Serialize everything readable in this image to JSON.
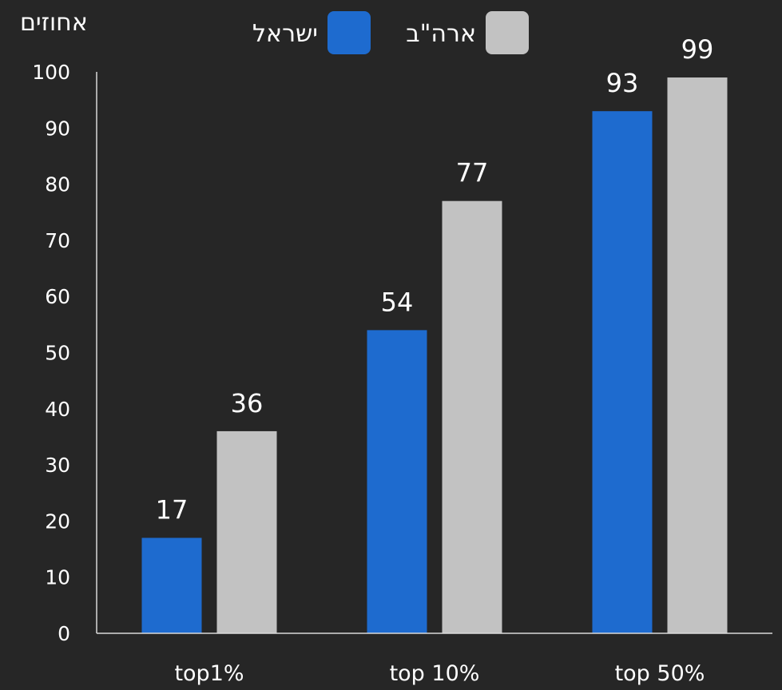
{
  "chart_data": {
    "type": "bar",
    "categories": [
      "top1%",
      "top 10%",
      "top 50%"
    ],
    "series": [
      {
        "name": "ישראל",
        "color": "#1e6bcf",
        "values": [
          17,
          54,
          93
        ]
      },
      {
        "name": "ארה\"ב",
        "color": "#c2c2c2",
        "values": [
          36,
          77,
          99
        ]
      }
    ],
    "ylabel": "אחוזים",
    "ylim": [
      0,
      100
    ],
    "yticks": [
      0,
      10,
      20,
      30,
      40,
      50,
      60,
      70,
      80,
      90,
      100
    ],
    "legend_position": "top",
    "grid": false
  },
  "colors": {
    "background": "#262626",
    "axis": "#d9d9d9",
    "text": "#ffffff"
  }
}
